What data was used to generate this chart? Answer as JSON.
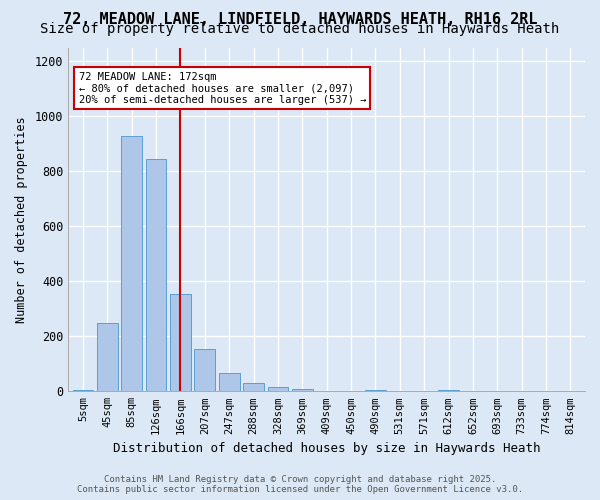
{
  "title1": "72, MEADOW LANE, LINDFIELD, HAYWARDS HEATH, RH16 2RL",
  "title2": "Size of property relative to detached houses in Haywards Heath",
  "xlabel": "Distribution of detached houses by size in Haywards Heath",
  "ylabel": "Number of detached properties",
  "bar_labels": [
    "5sqm",
    "45sqm",
    "85sqm",
    "126sqm",
    "166sqm",
    "207sqm",
    "247sqm",
    "288sqm",
    "328sqm",
    "369sqm",
    "409sqm",
    "450sqm",
    "490sqm",
    "531sqm",
    "571sqm",
    "612sqm",
    "652sqm",
    "693sqm",
    "733sqm",
    "774sqm",
    "814sqm"
  ],
  "bar_values": [
    5,
    250,
    930,
    845,
    355,
    155,
    65,
    30,
    15,
    8,
    0,
    0,
    5,
    0,
    0,
    3,
    0,
    0,
    0,
    0,
    0
  ],
  "bar_color": "#aec6e8",
  "bar_edge_color": "#5a9fd4",
  "vline_x": 4,
  "vline_color": "#cc0000",
  "annotation_title": "72 MEADOW LANE: 172sqm",
  "annotation_line1": "← 80% of detached houses are smaller (2,097)",
  "annotation_line2": "20% of semi-detached houses are larger (537) →",
  "annotation_box_color": "#ffffff",
  "annotation_box_edge": "#cc0000",
  "ylim": [
    0,
    1250
  ],
  "yticks": [
    0,
    200,
    400,
    600,
    800,
    1000,
    1200
  ],
  "footer1": "Contains HM Land Registry data © Crown copyright and database right 2025.",
  "footer2": "Contains public sector information licensed under the Open Government Licence v3.0.",
  "bg_color": "#dce8f5",
  "grid_color": "#ffffff",
  "title_fontsize": 11,
  "subtitle_fontsize": 10
}
